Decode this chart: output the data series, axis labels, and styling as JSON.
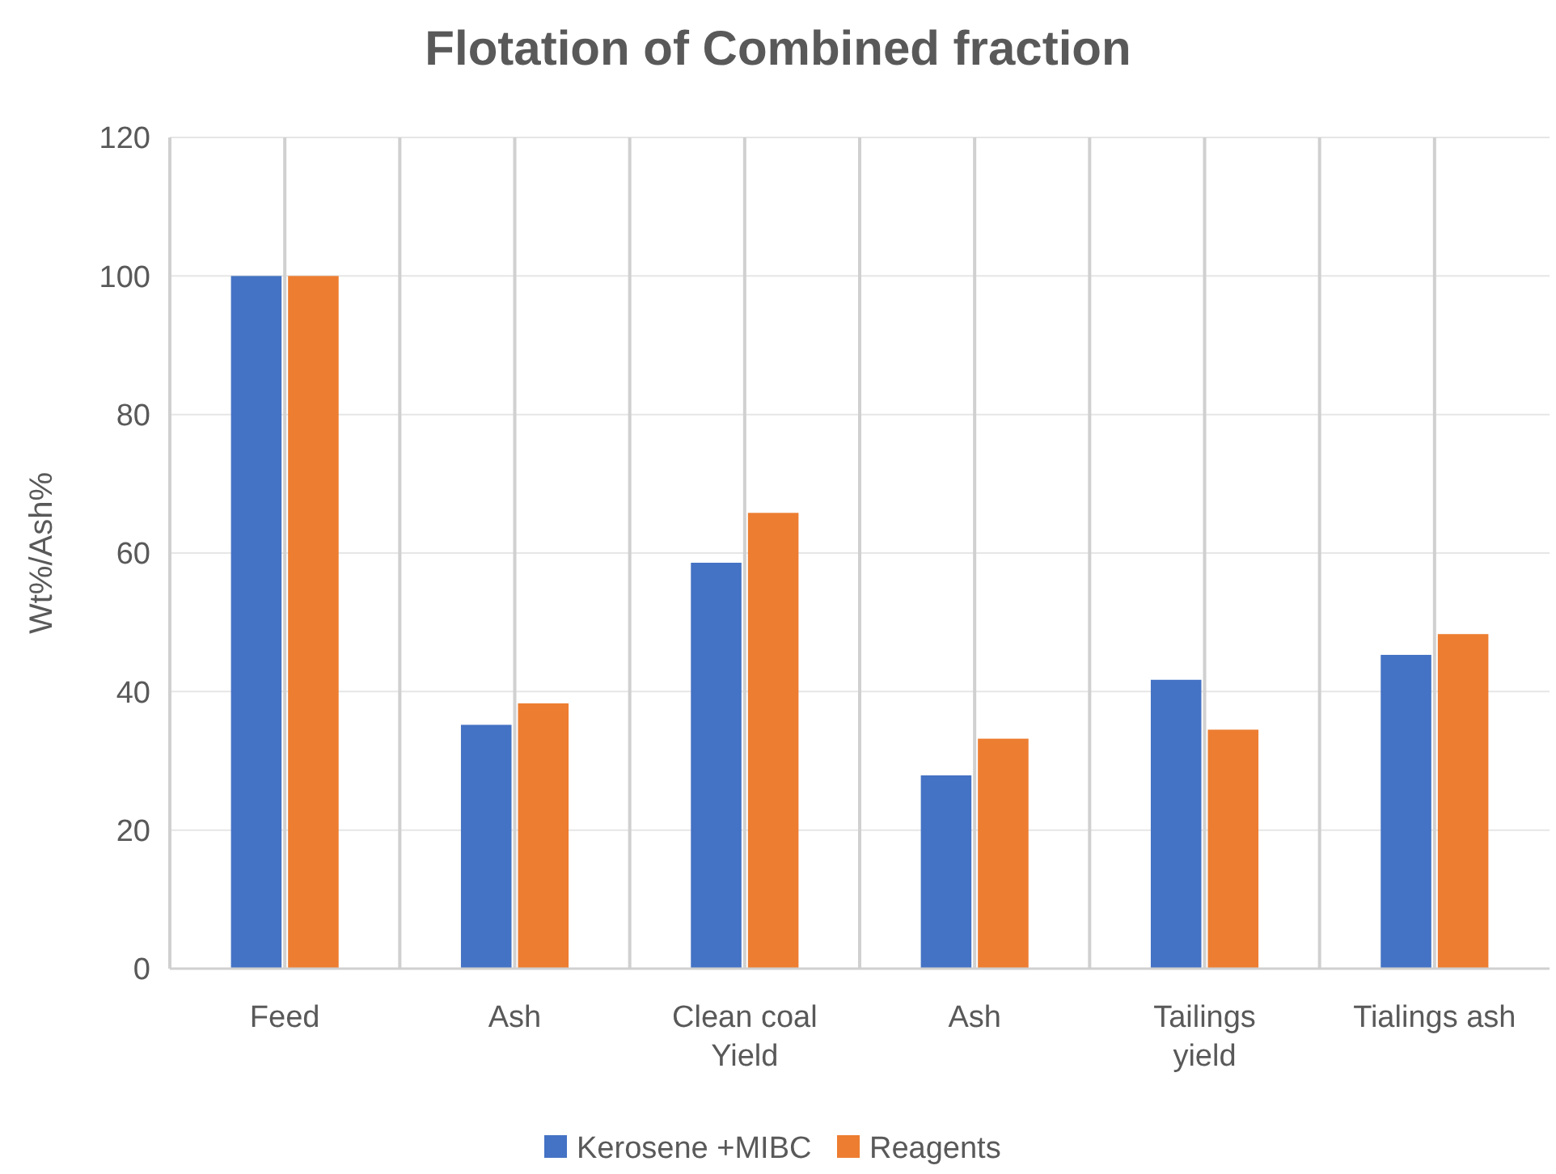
{
  "chart_data": {
    "type": "bar",
    "title": "Flotation of Combined fraction",
    "ylabel": "Wt%/Ash%",
    "categories": [
      "Feed",
      "Ash",
      "Clean coal\nYield",
      "Ash",
      "Tailings\nyield",
      "Tialings ash"
    ],
    "series": [
      {
        "name": "Kerosene +MIBC",
        "color": "#4472c4",
        "values": [
          100,
          35.2,
          58.6,
          27.9,
          41.7,
          45.3
        ]
      },
      {
        "name": "Reagents",
        "color": "#ed7d31",
        "values": [
          100,
          38.3,
          65.8,
          33.2,
          34.5,
          48.3
        ]
      }
    ],
    "ylim": [
      0,
      120
    ],
    "yticks": [
      0,
      20,
      40,
      60,
      80,
      100,
      120
    ],
    "grid": true,
    "legend": "bottom"
  }
}
